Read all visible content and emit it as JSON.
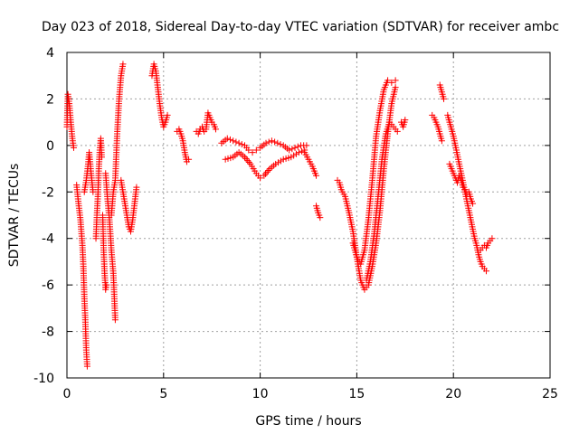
{
  "chart_data": {
    "type": "scatter",
    "title": "Day 023 of 2018, Sidereal Day-to-day VTEC variation (SDTVAR) for receiver ambc",
    "xlabel": "GPS time / hours",
    "ylabel": "SDTVAR / TECUs",
    "xlim": [
      0,
      25
    ],
    "ylim": [
      -10,
      4
    ],
    "x_ticks": [
      0,
      5,
      10,
      15,
      20,
      25
    ],
    "x_tick_labels": [
      "0",
      "5",
      "10",
      "15",
      "20",
      "25"
    ],
    "y_ticks": [
      4,
      2,
      0,
      -2,
      -4,
      -6,
      -8,
      -10
    ],
    "y_tick_labels": [
      "4",
      "2",
      "0",
      "-2",
      "-4",
      "-6",
      "-8",
      "-10"
    ],
    "grid": true,
    "marker": "+",
    "marker_color": "#ff0000",
    "series": [
      {
        "name": "SDTVAR",
        "segments": [
          [
            [
              0.0,
              0.8
            ],
            [
              0.05,
              2.2
            ],
            [
              0.12,
              1.8
            ],
            [
              0.2,
              1.0
            ],
            [
              0.28,
              0.3
            ],
            [
              0.35,
              -0.1
            ]
          ],
          [
            [
              0.5,
              -1.7
            ],
            [
              0.6,
              -2.5
            ],
            [
              0.7,
              -3.2
            ],
            [
              0.8,
              -4.3
            ],
            [
              0.85,
              -5.2
            ],
            [
              0.9,
              -6.5
            ],
            [
              0.95,
              -7.5
            ],
            [
              1.0,
              -8.8
            ],
            [
              1.05,
              -9.5
            ]
          ],
          [
            [
              0.9,
              -2.0
            ],
            [
              1.0,
              -1.5
            ],
            [
              1.1,
              -0.8
            ],
            [
              1.15,
              -0.3
            ],
            [
              1.25,
              -1.2
            ],
            [
              1.35,
              -2.0
            ]
          ],
          [
            [
              1.5,
              -4.0
            ],
            [
              1.55,
              -3.0
            ],
            [
              1.6,
              -2.2
            ],
            [
              1.65,
              -1.0
            ],
            [
              1.7,
              -0.2
            ],
            [
              1.75,
              0.3
            ],
            [
              1.8,
              -0.5
            ]
          ],
          [
            [
              1.85,
              -3.0
            ],
            [
              1.9,
              -4.5
            ],
            [
              1.95,
              -5.5
            ],
            [
              2.0,
              -6.2
            ],
            [
              2.05,
              -6.0
            ]
          ],
          [
            [
              2.0,
              -1.2
            ],
            [
              2.1,
              -2.3
            ],
            [
              2.2,
              -3.2
            ],
            [
              2.3,
              -4.5
            ],
            [
              2.4,
              -5.5
            ],
            [
              2.45,
              -6.5
            ],
            [
              2.5,
              -7.5
            ]
          ],
          [
            [
              2.3,
              -3.0
            ],
            [
              2.4,
              -2.0
            ],
            [
              2.5,
              -1.5
            ],
            [
              2.55,
              -0.5
            ],
            [
              2.6,
              0.5
            ],
            [
              2.7,
              2.0
            ],
            [
              2.8,
              3.0
            ],
            [
              2.9,
              3.5
            ]
          ],
          [
            [
              2.8,
              -1.5
            ],
            [
              2.9,
              -2.0
            ],
            [
              3.0,
              -2.5
            ],
            [
              3.1,
              -3.0
            ],
            [
              3.2,
              -3.5
            ],
            [
              3.3,
              -3.7
            ],
            [
              3.4,
              -3.2
            ],
            [
              3.5,
              -2.5
            ],
            [
              3.6,
              -1.8
            ]
          ],
          [
            [
              4.4,
              3.0
            ],
            [
              4.5,
              3.5
            ],
            [
              4.6,
              3.2
            ],
            [
              4.7,
              2.5
            ],
            [
              4.8,
              1.8
            ],
            [
              4.9,
              1.2
            ],
            [
              5.0,
              0.8
            ],
            [
              5.1,
              1.0
            ],
            [
              5.2,
              1.3
            ]
          ],
          [
            [
              5.7,
              0.6
            ],
            [
              5.8,
              0.7
            ],
            [
              5.9,
              0.5
            ],
            [
              6.0,
              0.2
            ],
            [
              6.1,
              -0.3
            ],
            [
              6.2,
              -0.7
            ],
            [
              6.3,
              -0.6
            ]
          ],
          [
            [
              6.7,
              0.6
            ],
            [
              6.8,
              0.5
            ],
            [
              6.9,
              0.7
            ],
            [
              7.0,
              0.8
            ],
            [
              7.1,
              0.6
            ],
            [
              7.2,
              0.7
            ],
            [
              7.3,
              1.4
            ],
            [
              7.4,
              1.2
            ],
            [
              7.5,
              1.0
            ],
            [
              7.6,
              0.9
            ],
            [
              7.7,
              0.7
            ]
          ],
          [
            [
              8.0,
              0.1
            ],
            [
              8.3,
              0.3
            ],
            [
              8.6,
              0.2
            ],
            [
              8.9,
              0.1
            ],
            [
              9.2,
              0.0
            ],
            [
              9.4,
              -0.2
            ],
            [
              9.6,
              -0.3
            ],
            [
              9.8,
              -0.2
            ],
            [
              10.0,
              -0.1
            ],
            [
              10.3,
              0.1
            ],
            [
              10.6,
              0.2
            ],
            [
              10.9,
              0.1
            ],
            [
              11.2,
              0.0
            ],
            [
              11.5,
              -0.2
            ],
            [
              11.8,
              -0.1
            ],
            [
              12.1,
              0.0
            ],
            [
              12.4,
              0.0
            ]
          ],
          [
            [
              8.2,
              -0.6
            ],
            [
              8.6,
              -0.5
            ],
            [
              8.9,
              -0.3
            ],
            [
              9.2,
              -0.5
            ],
            [
              9.5,
              -0.8
            ],
            [
              9.8,
              -1.2
            ],
            [
              10.0,
              -1.4
            ],
            [
              10.2,
              -1.3
            ],
            [
              10.5,
              -1.0
            ],
            [
              10.8,
              -0.8
            ],
            [
              11.2,
              -0.6
            ],
            [
              11.6,
              -0.5
            ],
            [
              12.0,
              -0.3
            ],
            [
              12.3,
              -0.2
            ]
          ],
          [
            [
              12.3,
              -0.3
            ],
            [
              12.5,
              -0.6
            ],
            [
              12.7,
              -0.9
            ],
            [
              12.9,
              -1.3
            ]
          ],
          [
            [
              12.9,
              -2.6
            ],
            [
              13.0,
              -2.9
            ],
            [
              13.1,
              -3.1
            ]
          ],
          [
            [
              14.0,
              -1.5
            ],
            [
              14.1,
              -1.6
            ],
            [
              14.2,
              -1.9
            ],
            [
              14.4,
              -2.2
            ],
            [
              14.6,
              -2.9
            ],
            [
              14.8,
              -3.7
            ],
            [
              15.0,
              -4.8
            ],
            [
              15.2,
              -5.8
            ],
            [
              15.4,
              -6.2
            ],
            [
              15.6,
              -6.0
            ],
            [
              15.8,
              -5.2
            ],
            [
              16.0,
              -4.2
            ],
            [
              16.2,
              -2.8
            ],
            [
              16.4,
              -1.0
            ],
            [
              16.6,
              0.5
            ],
            [
              16.8,
              1.8
            ],
            [
              17.0,
              2.5
            ]
          ],
          [
            [
              14.8,
              -4.2
            ],
            [
              15.0,
              -4.8
            ],
            [
              15.2,
              -5.1
            ],
            [
              15.4,
              -4.5
            ],
            [
              15.6,
              -3.2
            ],
            [
              15.8,
              -1.5
            ],
            [
              16.0,
              0.4
            ],
            [
              16.2,
              1.5
            ],
            [
              16.4,
              2.4
            ],
            [
              16.6,
              2.8
            ],
            [
              16.8,
              2.7
            ],
            [
              17.0,
              2.8
            ]
          ],
          [
            [
              15.5,
              -5.8
            ],
            [
              15.7,
              -5.0
            ],
            [
              15.9,
              -3.8
            ],
            [
              16.1,
              -2.2
            ],
            [
              16.3,
              -0.6
            ],
            [
              16.5,
              0.5
            ],
            [
              16.7,
              1.0
            ],
            [
              16.9,
              0.8
            ],
            [
              17.1,
              0.6
            ]
          ],
          [
            [
              17.3,
              1.0
            ],
            [
              17.4,
              0.8
            ],
            [
              17.5,
              1.1
            ]
          ],
          [
            [
              18.9,
              1.3
            ],
            [
              19.0,
              1.2
            ],
            [
              19.1,
              1.0
            ],
            [
              19.2,
              0.8
            ],
            [
              19.3,
              0.5
            ],
            [
              19.4,
              0.2
            ]
          ],
          [
            [
              19.3,
              2.6
            ],
            [
              19.4,
              2.3
            ],
            [
              19.5,
              2.0
            ]
          ],
          [
            [
              19.7,
              1.3
            ],
            [
              19.8,
              1.0
            ],
            [
              19.9,
              0.7
            ],
            [
              20.0,
              0.4
            ],
            [
              20.1,
              0.0
            ],
            [
              20.2,
              -0.4
            ],
            [
              20.3,
              -0.8
            ],
            [
              20.4,
              -1.2
            ],
            [
              20.5,
              -1.6
            ],
            [
              20.6,
              -2.0
            ],
            [
              20.7,
              -2.4
            ],
            [
              20.8,
              -2.8
            ],
            [
              20.9,
              -3.2
            ],
            [
              21.0,
              -3.6
            ],
            [
              21.1,
              -4.0
            ],
            [
              21.2,
              -4.3
            ],
            [
              21.3,
              -4.7
            ],
            [
              21.4,
              -5.0
            ],
            [
              21.5,
              -5.2
            ],
            [
              21.6,
              -5.3
            ],
            [
              21.7,
              -5.4
            ]
          ],
          [
            [
              19.8,
              -0.8
            ],
            [
              19.9,
              -1.0
            ],
            [
              20.0,
              -1.2
            ],
            [
              20.1,
              -1.4
            ],
            [
              20.2,
              -1.6
            ],
            [
              20.3,
              -1.3
            ],
            [
              20.4,
              -1.5
            ],
            [
              20.5,
              -1.8
            ],
            [
              20.6,
              -1.9
            ],
            [
              20.7,
              -2.1
            ],
            [
              20.8,
              -2.0
            ],
            [
              20.9,
              -2.3
            ],
            [
              21.0,
              -2.5
            ]
          ],
          [
            [
              21.4,
              -4.5
            ],
            [
              21.5,
              -4.4
            ],
            [
              21.6,
              -4.3
            ],
            [
              21.7,
              -4.4
            ],
            [
              21.8,
              -4.2
            ],
            [
              21.9,
              -4.1
            ],
            [
              22.0,
              -4.0
            ]
          ]
        ]
      }
    ]
  }
}
